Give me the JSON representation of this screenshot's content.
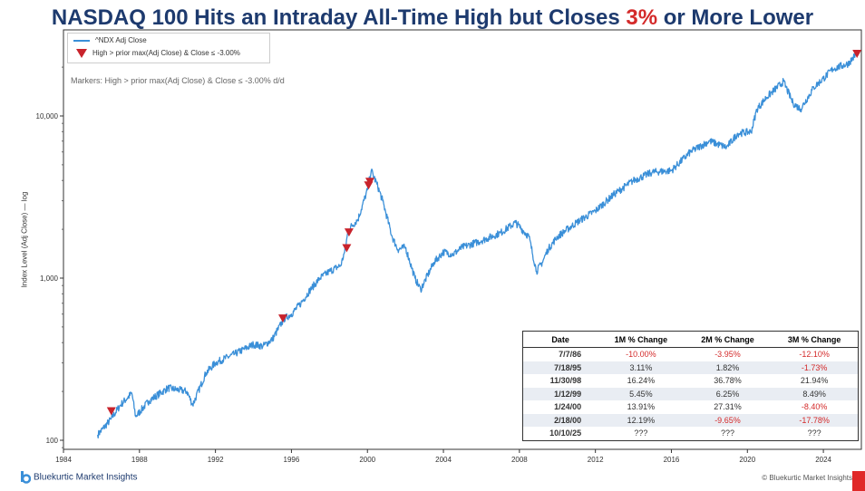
{
  "title": {
    "before": "NASDAQ 100 Hits an Intraday All-Time High but Closes ",
    "highlight": "3%",
    "after": " or More Lower"
  },
  "legend": {
    "line_label": "^NDX Adj Close",
    "marker_label": "High > prior max(Adj Close) & Close ≤ -3.00%"
  },
  "annotation": "Markers: High > prior max(Adj Close) & Close ≤ -3.00% d/d",
  "colors": {
    "line": "#3a8fd8",
    "marker": "#c8232c",
    "title": "#1d3a6e",
    "negative": "#d42a2a"
  },
  "chart_data": {
    "type": "line",
    "title": "NASDAQ 100 Hits an Intraday All-Time High but Closes 3% or More Lower",
    "xlabel": "",
    "ylabel": "Index Level (Adj Close) — log",
    "y_scale": "log",
    "xlim": [
      1984,
      2026
    ],
    "ylim": [
      90,
      28000
    ],
    "x_ticks": [
      1984,
      1988,
      1992,
      1996,
      2000,
      2004,
      2008,
      2012,
      2016,
      2020,
      2024
    ],
    "y_ticks": [
      100,
      1000,
      10000
    ],
    "y_tick_labels": [
      "100",
      "1,000",
      "10,000"
    ],
    "series": [
      {
        "name": "^NDX Adj Close",
        "x": [
          1985.8,
          1986.5,
          1987.0,
          1987.6,
          1987.8,
          1988.5,
          1989.5,
          1990.5,
          1990.8,
          1991.5,
          1992.0,
          1993.0,
          1994.0,
          1994.5,
          1995.0,
          1995.6,
          1996.0,
          1996.5,
          1997.0,
          1997.5,
          1998.0,
          1998.6,
          1998.8,
          1999.0,
          1999.5,
          2000.0,
          2000.2,
          2000.5,
          2000.8,
          2001.3,
          2001.6,
          2002.0,
          2002.5,
          2002.8,
          2003.5,
          2004.0,
          2004.5,
          2005.0,
          2006.0,
          2007.0,
          2007.8,
          2008.5,
          2008.9,
          2009.2,
          2009.5,
          2010.0,
          2011.0,
          2012.0,
          2013.0,
          2014.0,
          2015.0,
          2016.0,
          2017.0,
          2018.0,
          2018.9,
          2019.5,
          2020.2,
          2020.5,
          2021.0,
          2021.9,
          2022.4,
          2022.8,
          2023.5,
          2024.0,
          2024.5,
          2025.3,
          2025.8
        ],
        "values": [
          108,
          135,
          165,
          195,
          140,
          175,
          210,
          200,
          165,
          260,
          300,
          340,
          390,
          380,
          420,
          560,
          600,
          700,
          850,
          1000,
          1100,
          1200,
          1450,
          2000,
          2300,
          3500,
          4600,
          3800,
          3000,
          1800,
          1500,
          1550,
          1000,
          850,
          1250,
          1450,
          1400,
          1550,
          1700,
          1900,
          2200,
          1800,
          1100,
          1250,
          1500,
          1800,
          2200,
          2600,
          3300,
          4000,
          4500,
          4600,
          6000,
          7000,
          6400,
          7800,
          8000,
          11000,
          13000,
          16300,
          12000,
          11000,
          15000,
          17000,
          19500,
          21000,
          24600
        ]
      }
    ],
    "markers": {
      "name": "High > prior max(Adj Close) & Close ≤ -3.00%",
      "x": [
        1986.52,
        1995.55,
        1998.91,
        1999.03,
        2000.06,
        2000.13,
        2025.77
      ],
      "values": [
        150,
        560,
        1520,
        1900,
        3700,
        3900,
        24000
      ]
    }
  },
  "table": {
    "headers": [
      "Date",
      "1M % Change",
      "2M % Change",
      "3M % Change"
    ],
    "rows": [
      [
        "7/7/86",
        "-10.00%",
        "-3.95%",
        "-12.10%"
      ],
      [
        "7/18/95",
        "3.11%",
        "1.82%",
        "-1.73%"
      ],
      [
        "11/30/98",
        "16.24%",
        "36.78%",
        "21.94%"
      ],
      [
        "1/12/99",
        "5.45%",
        "6.25%",
        "8.49%"
      ],
      [
        "1/24/00",
        "13.91%",
        "27.31%",
        "-8.40%"
      ],
      [
        "2/18/00",
        "12.19%",
        "-9.65%",
        "-17.78%"
      ],
      [
        "10/10/25",
        "???",
        "???",
        "???"
      ]
    ]
  },
  "footer": {
    "brand": "Bluekurtic Market Insights",
    "copyright": "© Bluekurtic Market Insights"
  }
}
